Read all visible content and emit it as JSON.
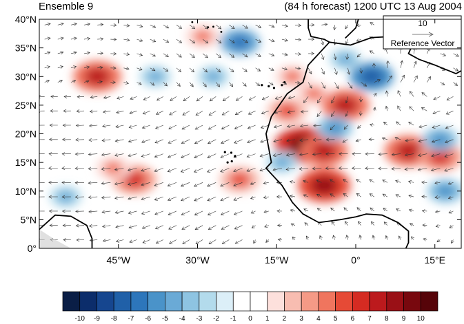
{
  "title_left": "Ensemble 9",
  "title_right": "(84 h forecast) 1200 UTC 13 Aug 2004",
  "reference_vector": {
    "value": "10",
    "label": "Reference Vector"
  },
  "lat_labels": [
    "40°N",
    "35°N",
    "30°N",
    "25°N",
    "20°N",
    "15°N",
    "10°N",
    "5°N",
    "0°"
  ],
  "lat_values": [
    40,
    35,
    30,
    25,
    20,
    15,
    10,
    5,
    0
  ],
  "lon_labels": [
    "45°W",
    "30°W",
    "15°W",
    "0°",
    "15°E"
  ],
  "lon_values": [
    -45,
    -30,
    -15,
    0,
    15
  ],
  "extent": {
    "lon_min": -60,
    "lon_max": 20,
    "lat_min": 0,
    "lat_max": 40
  },
  "colorbar": {
    "labels": [
      "-10",
      "-9",
      "-8",
      "-7",
      "-6",
      "-5",
      "-4",
      "-3",
      "-2",
      "-1",
      "0",
      "1",
      "2",
      "3",
      "4",
      "5",
      "6",
      "7",
      "8",
      "9",
      "10"
    ],
    "colors": [
      "#0a1e46",
      "#0c2d6b",
      "#16468f",
      "#2060a8",
      "#2d76bb",
      "#4a93c9",
      "#6aaad6",
      "#8ec4e2",
      "#b3dbec",
      "#dceff8",
      "#ffffff",
      "#ffffff",
      "#fde0dc",
      "#f8bdb1",
      "#f59a86",
      "#f0755e",
      "#e64a36",
      "#d52b22",
      "#bc1a1d",
      "#9a1016",
      "#78080e",
      "#560409"
    ]
  },
  "map": {
    "anomalies": [
      {
        "lon": -49,
        "lat": 30,
        "val": 7
      },
      {
        "lon": -42,
        "lat": 12,
        "val": 6
      },
      {
        "lon": -46,
        "lat": 14,
        "val": 4
      },
      {
        "lon": -22,
        "lat": 12,
        "val": 5
      },
      {
        "lon": -10,
        "lat": 18,
        "val": 9
      },
      {
        "lon": -6,
        "lat": 17,
        "val": 7
      },
      {
        "lon": -13,
        "lat": 24,
        "val": 5
      },
      {
        "lon": -8,
        "lat": 27,
        "val": 4
      },
      {
        "lon": -6,
        "lat": 11,
        "val": 8
      },
      {
        "lon": -2,
        "lat": 25,
        "val": 7
      },
      {
        "lon": 10,
        "lat": 17,
        "val": 7
      },
      {
        "lon": 16,
        "lat": 16,
        "val": 6
      },
      {
        "lon": -29,
        "lat": 37,
        "val": 4
      },
      {
        "lon": -12,
        "lat": 30,
        "val": 4
      },
      {
        "lon": -22,
        "lat": 36,
        "val": -5
      },
      {
        "lon": 3,
        "lat": 30,
        "val": -6
      },
      {
        "lon": -4,
        "lat": 21,
        "val": -4
      },
      {
        "lon": 16,
        "lat": 19,
        "val": -4
      },
      {
        "lon": 17,
        "lat": 10,
        "val": -4
      },
      {
        "lon": -14,
        "lat": 15,
        "val": -3
      },
      {
        "lon": -38,
        "lat": 30,
        "val": -3
      },
      {
        "lon": -27,
        "lat": 30,
        "val": -3
      },
      {
        "lon": -55,
        "lat": 9,
        "val": -3
      },
      {
        "lon": -2,
        "lat": 33,
        "val": -3
      }
    ],
    "africa_coast": [
      [
        -5,
        36
      ],
      [
        -9,
        32
      ],
      [
        -10,
        29
      ],
      [
        -13,
        27
      ],
      [
        -16,
        23
      ],
      [
        -17,
        20
      ],
      [
        -16,
        15
      ],
      [
        -17,
        14
      ],
      [
        -14,
        11
      ],
      [
        -12,
        8
      ],
      [
        -10,
        6
      ],
      [
        -7,
        4.5
      ],
      [
        -3,
        5
      ],
      [
        0,
        5.5
      ],
      [
        2,
        6
      ],
      [
        5,
        5.8
      ],
      [
        8,
        4.5
      ],
      [
        10,
        3
      ],
      [
        10,
        1
      ],
      [
        9.5,
        0
      ]
    ],
    "africa_north": [
      [
        -5,
        36
      ],
      [
        -1,
        35.5
      ],
      [
        3,
        36.8
      ],
      [
        7,
        37
      ],
      [
        10,
        37.3
      ],
      [
        11,
        36
      ],
      [
        10,
        34
      ],
      [
        12,
        33
      ],
      [
        15,
        32
      ],
      [
        19,
        30.5
      ],
      [
        20,
        31
      ]
    ],
    "south_america": [
      [
        -60,
        3.3
      ],
      [
        -57,
        5.8
      ],
      [
        -54,
        5.6
      ],
      [
        -51,
        4
      ],
      [
        -50,
        1.7
      ],
      [
        -50,
        0
      ]
    ],
    "iberia": [
      [
        -5,
        36
      ],
      [
        -6,
        36.5
      ],
      [
        -8.5,
        37
      ],
      [
        -9,
        38.5
      ],
      [
        -9,
        40
      ]
    ],
    "iberia_east": [
      [
        -2,
        36.7
      ],
      [
        0,
        38.5
      ],
      [
        0.5,
        40
      ]
    ],
    "italy": [
      [
        13,
        40
      ],
      [
        14.5,
        40
      ],
      [
        16,
        38
      ],
      [
        16,
        39.5
      ],
      [
        17,
        40
      ]
    ],
    "canaries": [
      [
        -17.8,
        28.5
      ],
      [
        -16.5,
        28.3
      ],
      [
        -15.5,
        28
      ],
      [
        -14,
        28.5
      ],
      [
        -13.5,
        29
      ]
    ],
    "cape_verde": [
      [
        -24.8,
        16.8
      ],
      [
        -24.3,
        15.0
      ],
      [
        -23.5,
        15.2
      ],
      [
        -22.9,
        16.1
      ],
      [
        -23.6,
        16.7
      ]
    ],
    "azores": [
      [
        -31,
        39.5
      ],
      [
        -28,
        38.6
      ],
      [
        -27,
        38.7
      ],
      [
        -25.5,
        37.8
      ]
    ]
  }
}
